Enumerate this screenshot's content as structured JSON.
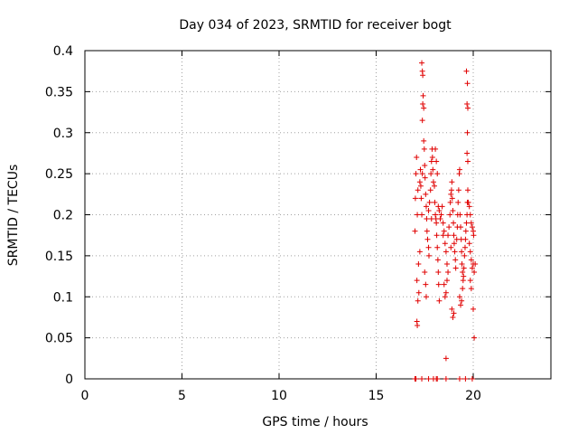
{
  "chart_data": {
    "type": "scatter",
    "title": "Day 034 of 2023, SRMTID for receiver bogt",
    "xlabel": "GPS time / hours",
    "ylabel": "SRMTID / TECUs",
    "xlim": [
      0,
      24
    ],
    "ylim": [
      0,
      0.4
    ],
    "xticks": [
      0,
      5,
      10,
      15,
      20
    ],
    "xtick_labels": [
      "0",
      "5",
      "10",
      "15",
      "20"
    ],
    "yticks": [
      0,
      0.05,
      0.1,
      0.15,
      0.2,
      0.25,
      0.3,
      0.35,
      0.4
    ],
    "ytick_labels": [
      "0",
      "0.05",
      "0.1",
      "0.15",
      "0.2",
      "0.25",
      "0.3",
      "0.35",
      "0.4"
    ],
    "grid": true,
    "marker": "+",
    "color": "#e00000",
    "series": [
      {
        "name": "SRMTID",
        "points": [
          [
            17.0,
            0.0
          ],
          [
            17.05,
            0.0
          ],
          [
            17.35,
            0.0
          ],
          [
            17.7,
            0.0
          ],
          [
            17.95,
            0.0
          ],
          [
            18.1,
            0.0
          ],
          [
            18.15,
            0.0
          ],
          [
            18.6,
            0.0
          ],
          [
            19.3,
            0.0
          ],
          [
            19.6,
            0.0
          ],
          [
            19.95,
            0.0
          ],
          [
            17.0,
            0.18
          ],
          [
            17.02,
            0.22
          ],
          [
            17.05,
            0.25
          ],
          [
            17.08,
            0.27
          ],
          [
            17.1,
            0.12
          ],
          [
            17.12,
            0.2
          ],
          [
            17.15,
            0.23
          ],
          [
            17.1,
            0.07
          ],
          [
            17.12,
            0.065
          ],
          [
            17.15,
            0.095
          ],
          [
            17.18,
            0.14
          ],
          [
            17.2,
            0.105
          ],
          [
            17.25,
            0.24
          ],
          [
            17.28,
            0.255
          ],
          [
            17.3,
            0.235
          ],
          [
            17.32,
            0.22
          ],
          [
            17.35,
            0.2
          ],
          [
            17.38,
            0.25
          ],
          [
            17.35,
            0.385
          ],
          [
            17.38,
            0.375
          ],
          [
            17.4,
            0.37
          ],
          [
            17.42,
            0.345
          ],
          [
            17.4,
            0.335
          ],
          [
            17.45,
            0.33
          ],
          [
            17.38,
            0.315
          ],
          [
            17.45,
            0.29
          ],
          [
            17.48,
            0.28
          ],
          [
            17.5,
            0.26
          ],
          [
            17.52,
            0.245
          ],
          [
            17.55,
            0.225
          ],
          [
            17.58,
            0.21
          ],
          [
            17.6,
            0.195
          ],
          [
            17.62,
            0.18
          ],
          [
            17.65,
            0.17
          ],
          [
            17.7,
            0.16
          ],
          [
            17.72,
            0.15
          ],
          [
            17.5,
            0.13
          ],
          [
            17.55,
            0.115
          ],
          [
            17.58,
            0.1
          ],
          [
            17.75,
            0.215
          ],
          [
            17.8,
            0.23
          ],
          [
            17.82,
            0.25
          ],
          [
            17.85,
            0.265
          ],
          [
            17.88,
            0.28
          ],
          [
            17.9,
            0.27
          ],
          [
            17.92,
            0.255
          ],
          [
            17.95,
            0.24
          ],
          [
            18.0,
            0.235
          ],
          [
            18.02,
            0.215
          ],
          [
            18.05,
            0.2
          ],
          [
            18.08,
            0.195
          ],
          [
            18.1,
            0.19
          ],
          [
            18.12,
            0.175
          ],
          [
            18.15,
            0.16
          ],
          [
            18.18,
            0.145
          ],
          [
            18.2,
            0.13
          ],
          [
            18.22,
            0.115
          ],
          [
            18.25,
            0.095
          ],
          [
            18.05,
            0.28
          ],
          [
            18.1,
            0.265
          ],
          [
            18.15,
            0.25
          ],
          [
            18.2,
            0.21
          ],
          [
            18.25,
            0.205
          ],
          [
            18.3,
            0.195
          ],
          [
            18.35,
            0.2
          ],
          [
            18.4,
            0.21
          ],
          [
            18.45,
            0.19
          ],
          [
            18.5,
            0.18
          ],
          [
            18.55,
            0.165
          ],
          [
            18.6,
            0.155
          ],
          [
            18.65,
            0.14
          ],
          [
            18.7,
            0.13
          ],
          [
            18.5,
            0.115
          ],
          [
            18.55,
            0.1
          ],
          [
            18.6,
            0.105
          ],
          [
            18.65,
            0.12
          ],
          [
            18.7,
            0.175
          ],
          [
            18.75,
            0.185
          ],
          [
            18.8,
            0.2
          ],
          [
            18.82,
            0.215
          ],
          [
            18.85,
            0.225
          ],
          [
            18.88,
            0.23
          ],
          [
            18.9,
            0.24
          ],
          [
            18.92,
            0.22
          ],
          [
            18.95,
            0.205
          ],
          [
            18.98,
            0.19
          ],
          [
            19.0,
            0.175
          ],
          [
            19.02,
            0.165
          ],
          [
            19.05,
            0.155
          ],
          [
            19.08,
            0.145
          ],
          [
            19.1,
            0.135
          ],
          [
            18.9,
            0.085
          ],
          [
            18.95,
            0.075
          ],
          [
            19.0,
            0.08
          ],
          [
            19.15,
            0.17
          ],
          [
            19.18,
            0.185
          ],
          [
            19.2,
            0.2
          ],
          [
            19.22,
            0.215
          ],
          [
            19.25,
            0.23
          ],
          [
            19.28,
            0.25
          ],
          [
            19.3,
            0.255
          ],
          [
            19.32,
            0.2
          ],
          [
            19.35,
            0.185
          ],
          [
            19.38,
            0.17
          ],
          [
            19.4,
            0.155
          ],
          [
            19.42,
            0.14
          ],
          [
            19.45,
            0.13
          ],
          [
            19.48,
            0.12
          ],
          [
            19.5,
            0.125
          ],
          [
            19.52,
            0.135
          ],
          [
            19.55,
            0.15
          ],
          [
            19.58,
            0.16
          ],
          [
            19.3,
            0.1
          ],
          [
            19.35,
            0.09
          ],
          [
            19.4,
            0.095
          ],
          [
            19.45,
            0.11
          ],
          [
            19.6,
            0.17
          ],
          [
            19.62,
            0.18
          ],
          [
            19.65,
            0.19
          ],
          [
            19.68,
            0.2
          ],
          [
            19.7,
            0.215
          ],
          [
            19.72,
            0.23
          ],
          [
            19.65,
            0.375
          ],
          [
            19.7,
            0.36
          ],
          [
            19.68,
            0.335
          ],
          [
            19.72,
            0.33
          ],
          [
            19.7,
            0.3
          ],
          [
            19.68,
            0.275
          ],
          [
            19.72,
            0.265
          ],
          [
            19.75,
            0.215
          ],
          [
            19.8,
            0.21
          ],
          [
            19.85,
            0.2
          ],
          [
            19.9,
            0.19
          ],
          [
            19.95,
            0.185
          ],
          [
            20.0,
            0.18
          ],
          [
            20.02,
            0.175
          ],
          [
            19.8,
            0.165
          ],
          [
            19.85,
            0.155
          ],
          [
            19.9,
            0.145
          ],
          [
            19.95,
            0.135
          ],
          [
            20.0,
            0.14
          ],
          [
            20.05,
            0.13
          ],
          [
            20.1,
            0.14
          ],
          [
            19.85,
            0.12
          ],
          [
            19.9,
            0.11
          ],
          [
            20.0,
            0.085
          ],
          [
            20.05,
            0.05
          ],
          [
            18.6,
            0.025
          ],
          [
            18.45,
            0.175
          ],
          [
            18.85,
            0.16
          ],
          [
            17.85,
            0.195
          ],
          [
            17.7,
            0.205
          ],
          [
            17.25,
            0.155
          ]
        ]
      }
    ]
  }
}
